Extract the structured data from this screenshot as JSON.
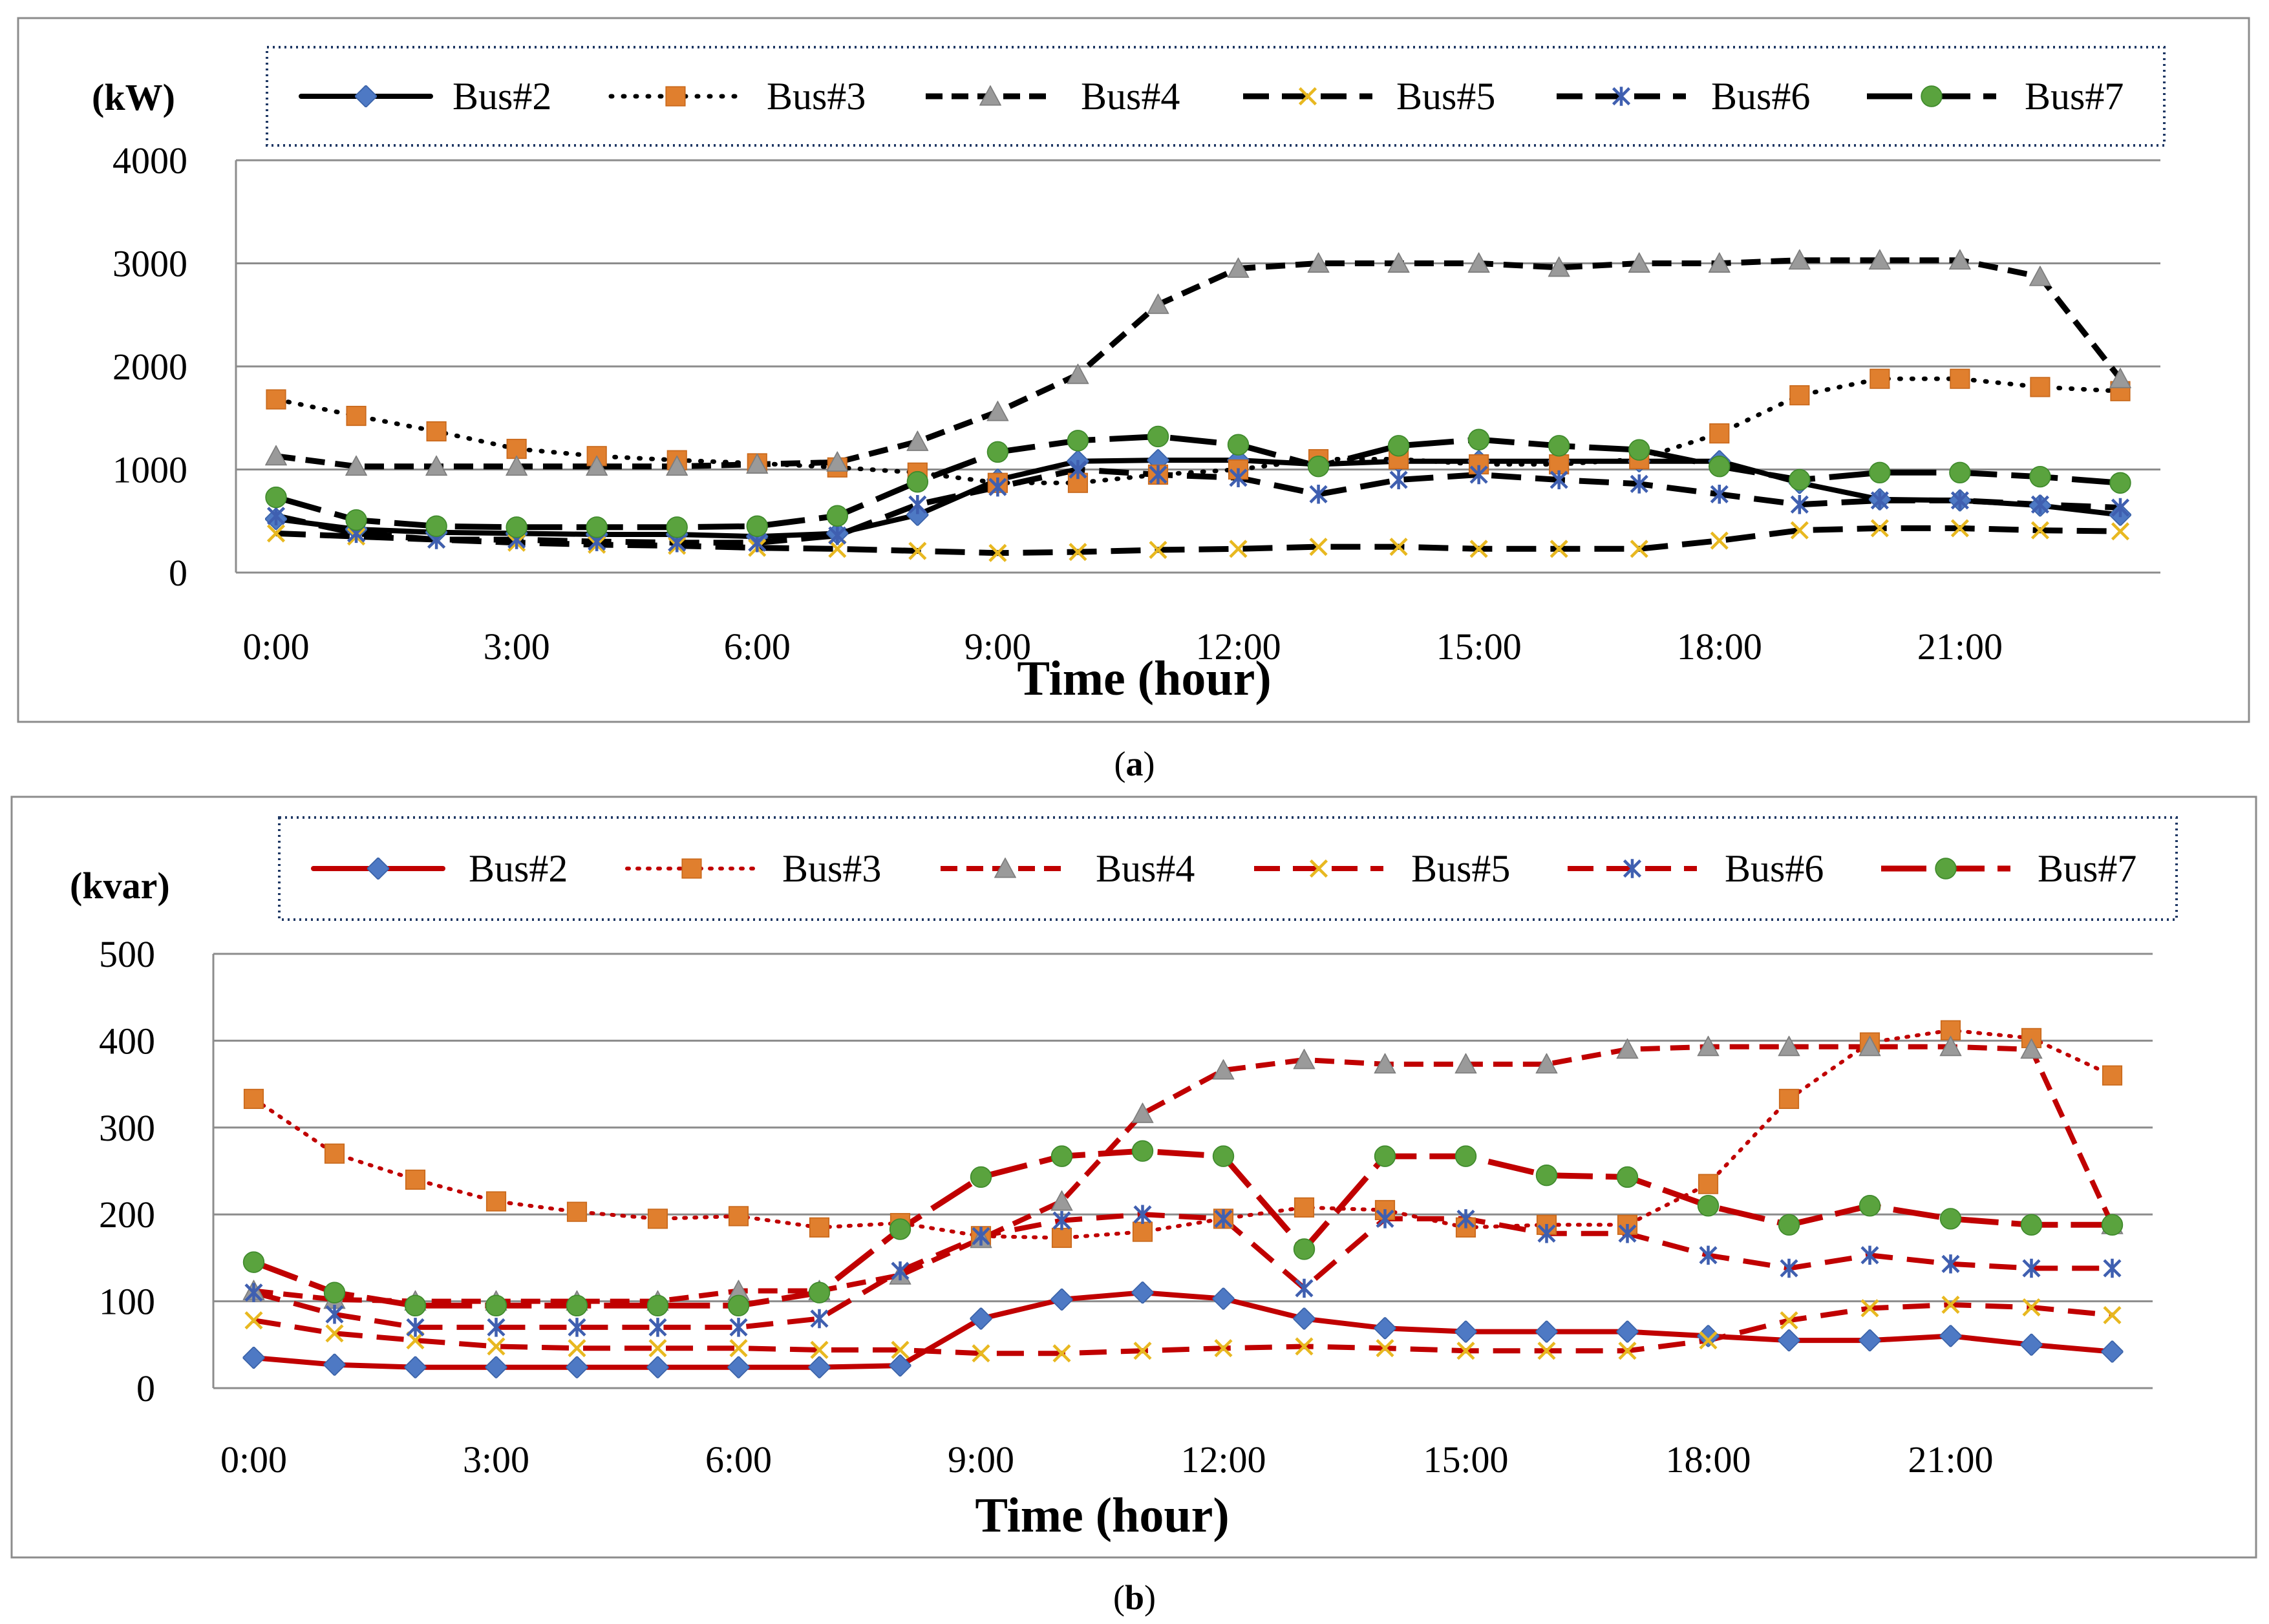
{
  "chart_data": [
    {
      "type": "line",
      "id": "a",
      "unit_label": "(kW)",
      "xlabel": "Time (hour)",
      "caption_label": "a",
      "ylim": [
        0,
        4000
      ],
      "yticks": [
        "0",
        "1000",
        "2000",
        "3000",
        "4000"
      ],
      "xtick_labels": [
        "0:00",
        "3:00",
        "6:00",
        "9:00",
        "12:00",
        "15:00",
        "18:00",
        "21:00"
      ],
      "x": [
        0,
        1,
        2,
        3,
        4,
        5,
        6,
        7,
        8,
        9,
        10,
        11,
        12,
        13,
        14,
        15,
        16,
        17,
        18,
        19,
        20,
        21,
        22,
        23
      ],
      "series": [
        {
          "name": "Bus#2",
          "values": [
            520,
            420,
            390,
            380,
            370,
            370,
            350,
            380,
            560,
            900,
            1080,
            1090,
            1090,
            1050,
            1080,
            1080,
            1080,
            1080,
            1080,
            870,
            710,
            700,
            650,
            560
          ]
        },
        {
          "name": "Bus#3",
          "values": [
            1680,
            1520,
            1370,
            1200,
            1130,
            1090,
            1060,
            1020,
            970,
            870,
            870,
            950,
            1000,
            1100,
            1100,
            1050,
            1050,
            1100,
            1350,
            1720,
            1880,
            1880,
            1800,
            1760
          ]
        },
        {
          "name": "Bus#4",
          "values": [
            1130,
            1030,
            1030,
            1030,
            1030,
            1030,
            1050,
            1070,
            1270,
            1560,
            1920,
            2600,
            2950,
            3000,
            3000,
            3000,
            2960,
            3000,
            3000,
            3030,
            3030,
            3030,
            2870,
            1880
          ]
        },
        {
          "name": "Bus#5",
          "values": [
            380,
            350,
            320,
            290,
            270,
            260,
            240,
            230,
            210,
            190,
            200,
            220,
            230,
            250,
            250,
            230,
            230,
            230,
            310,
            410,
            430,
            430,
            410,
            400
          ]
        },
        {
          "name": "Bus#6",
          "values": [
            550,
            380,
            320,
            320,
            300,
            290,
            290,
            360,
            660,
            830,
            1000,
            950,
            920,
            760,
            900,
            950,
            900,
            860,
            760,
            660,
            700,
            700,
            660,
            630
          ]
        },
        {
          "name": "Bus#7",
          "values": [
            730,
            510,
            450,
            440,
            440,
            440,
            450,
            550,
            880,
            1170,
            1280,
            1320,
            1240,
            1030,
            1230,
            1290,
            1230,
            1190,
            1030,
            900,
            970,
            970,
            930,
            870
          ]
        }
      ]
    },
    {
      "type": "line",
      "id": "b",
      "unit_label": "(kvar)",
      "xlabel": "Time (hour)",
      "caption_label": "b",
      "ylim": [
        0,
        500
      ],
      "yticks": [
        "0",
        "100",
        "200",
        "300",
        "400",
        "500"
      ],
      "xtick_labels": [
        "0:00",
        "3:00",
        "6:00",
        "9:00",
        "12:00",
        "15:00",
        "18:00",
        "21:00"
      ],
      "x": [
        0,
        1,
        2,
        3,
        4,
        5,
        6,
        7,
        8,
        9,
        10,
        11,
        12,
        13,
        14,
        15,
        16,
        17,
        18,
        19,
        20,
        21,
        22,
        23
      ],
      "series": [
        {
          "name": "Bus#2",
          "values": [
            35,
            27,
            24,
            24,
            24,
            24,
            24,
            24,
            26,
            80,
            102,
            110,
            103,
            80,
            69,
            65,
            65,
            65,
            60,
            55,
            55,
            60,
            50,
            42
          ]
        },
        {
          "name": "Bus#3",
          "values": [
            333,
            270,
            240,
            215,
            203,
            195,
            198,
            185,
            190,
            175,
            173,
            180,
            195,
            208,
            205,
            185,
            188,
            188,
            235,
            333,
            398,
            412,
            403,
            360
          ]
        },
        {
          "name": "Bus#4",
          "values": [
            112,
            102,
            100,
            100,
            100,
            100,
            112,
            112,
            130,
            172,
            215,
            316,
            366,
            378,
            373,
            373,
            373,
            390,
            393,
            393,
            393,
            393,
            390,
            188
          ]
        },
        {
          "name": "Bus#5",
          "values": [
            78,
            63,
            55,
            48,
            46,
            46,
            46,
            44,
            44,
            40,
            40,
            43,
            46,
            48,
            46,
            43,
            43,
            43,
            55,
            78,
            92,
            96,
            93,
            84
          ]
        },
        {
          "name": "Bus#6",
          "values": [
            110,
            85,
            70,
            70,
            70,
            70,
            70,
            80,
            135,
            175,
            193,
            200,
            195,
            115,
            195,
            195,
            178,
            178,
            153,
            138,
            153,
            143,
            138,
            138
          ]
        },
        {
          "name": "Bus#7",
          "values": [
            145,
            110,
            95,
            95,
            95,
            95,
            95,
            110,
            183,
            243,
            267,
            273,
            267,
            160,
            267,
            267,
            245,
            243,
            210,
            188,
            210,
            195,
            188,
            188
          ]
        }
      ]
    }
  ]
}
